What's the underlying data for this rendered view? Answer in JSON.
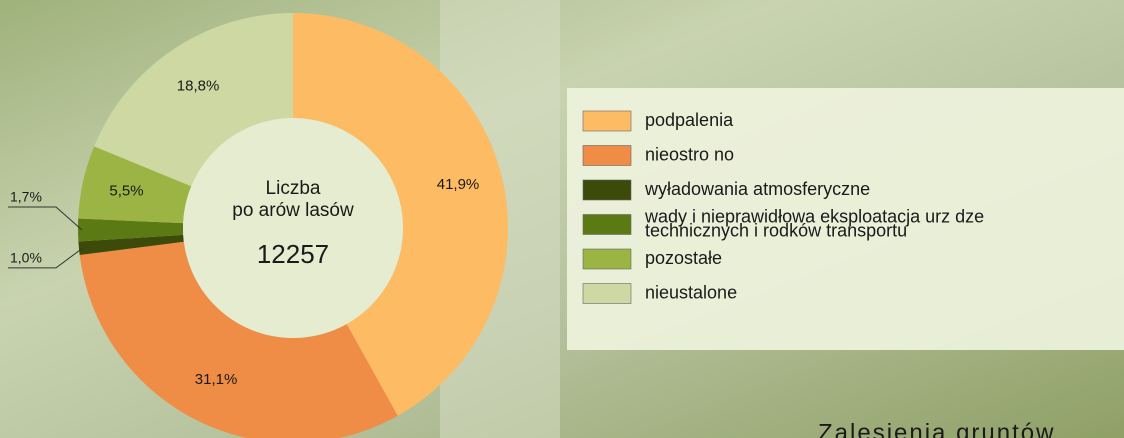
{
  "chart_data": {
    "type": "pie",
    "donut": true,
    "center_label": "Liczba\npo arów lasów",
    "center_value": "12257",
    "categories": [
      "podpalenia",
      "nieostro no",
      "wyładowania atmosferyczne",
      "wady i nieprawidłowa eksploatacja urz  dze\ntechnicznych i   rodków transportu",
      "pozostałe",
      "nieustalone"
    ],
    "values": [
      41.9,
      31.1,
      1.0,
      1.7,
      5.5,
      18.8
    ],
    "value_labels": [
      "41,9%",
      "31,1%",
      "1,0%",
      "1,7%",
      "5,5%",
      "18,8%"
    ],
    "colors": [
      "#fdbb63",
      "#ef8c45",
      "#3c4a0a",
      "#5c7a14",
      "#9bb443",
      "#cdd8a3"
    ],
    "legend": "right",
    "footer": "Zalesienia gruntów"
  }
}
